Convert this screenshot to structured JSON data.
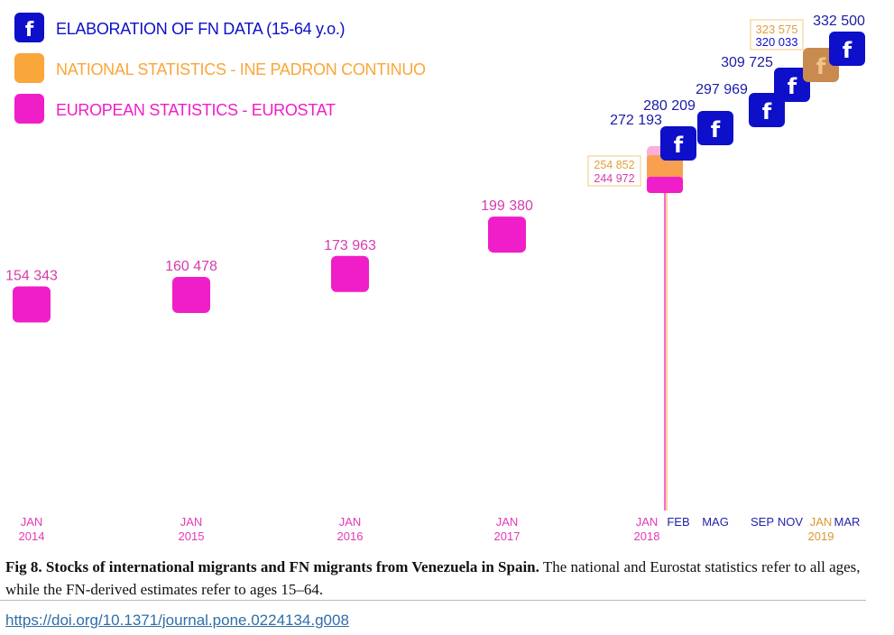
{
  "chart_data": {
    "type": "timeline",
    "legend": [
      {
        "label": "ELABORATION OF FN DATA (15-64 y.o.)",
        "color": "#0d0fc9",
        "icon": "facebook-icon"
      },
      {
        "label": "NATIONAL STATISTICS - INE PADRON CONTINUO",
        "color": "#f9a63a",
        "icon": "square"
      },
      {
        "label": "EUROPEAN STATISTICS - EUROSTAT",
        "color": "#f01ec8",
        "icon": "square"
      }
    ],
    "series": [
      {
        "name": "EUROPEAN STATISTICS - EUROSTAT",
        "color": "#f01ec8",
        "points": [
          {
            "date": "JAN 2014",
            "value": 154343,
            "label": "154 343"
          },
          {
            "date": "JAN 2015",
            "value": 160478,
            "label": "160 478"
          },
          {
            "date": "JAN 2016",
            "value": 173963,
            "label": "173 963"
          },
          {
            "date": "JAN 2017",
            "value": 199380,
            "label": "199 380"
          },
          {
            "date": "JAN 2018",
            "value": 244972,
            "label": "244 972"
          }
        ]
      },
      {
        "name": "NATIONAL STATISTICS - INE PADRON CONTINUO",
        "color": "#f9a63a",
        "points": [
          {
            "date": "JAN 2018",
            "value": 254852,
            "label": "254 852"
          },
          {
            "date": "JAN 2019",
            "value": 323575,
            "label": "323 575"
          }
        ]
      },
      {
        "name": "ELABORATION OF FN DATA (15-64 y.o.)",
        "color": "#0d0fc9",
        "points": [
          {
            "date": "JAN 2018",
            "value": 272193,
            "label": "272 193"
          },
          {
            "date": "FEB 2018",
            "value": 280209,
            "label": "280 209"
          },
          {
            "date": "MAG 2018",
            "value": 297969,
            "label": "297 969"
          },
          {
            "date": "SEP 2018",
            "value": 309725,
            "label": "309 725"
          },
          {
            "date": "NOV 2018",
            "value": 320033,
            "label": "320 033"
          },
          {
            "date": "MAR 2019",
            "value": 332500,
            "label": "332 500"
          }
        ]
      }
    ],
    "x_ticks": [
      {
        "month": "JAN",
        "year": "2014",
        "color": "#e33ab5"
      },
      {
        "month": "JAN",
        "year": "2015",
        "color": "#e33ab5"
      },
      {
        "month": "JAN",
        "year": "2016",
        "color": "#e33ab5"
      },
      {
        "month": "JAN",
        "year": "2017",
        "color": "#e33ab5"
      },
      {
        "month": "JAN",
        "year": "2018",
        "color": "#e33ab5"
      },
      {
        "month": "FEB",
        "year": "",
        "color": "#2323a8"
      },
      {
        "month": "MAG",
        "year": "",
        "color": "#2323a8"
      },
      {
        "month": "SEP",
        "year": "",
        "color": "#2323a8"
      },
      {
        "month": "NOV",
        "year": "",
        "color": "#2323a8"
      },
      {
        "month": "JAN",
        "year": "2019",
        "color": "#d9982f"
      },
      {
        "month": "MAR",
        "year": "",
        "color": "#2323a8"
      }
    ],
    "icon_letter": "f"
  },
  "caption": {
    "bold": "Fig 8.  Stocks of international migrants and FN migrants from Venezuela in Spain.",
    "text": " The national and Eurostat statistics refer to all ages, while the FN-derived estimates refer to ages 15–64."
  },
  "doi": "https://doi.org/10.1371/journal.pone.0224134.g008"
}
